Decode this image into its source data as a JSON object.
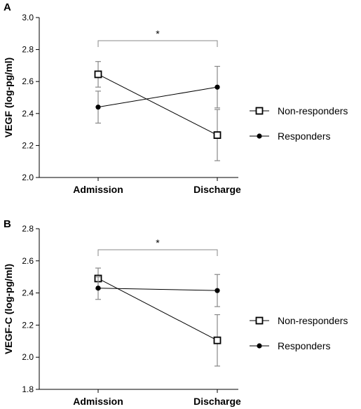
{
  "chart_data": [
    {
      "panel": "A",
      "type": "line",
      "ylabel": "VEGF (log-pg/ml)",
      "xlabel": "",
      "categories": [
        "Admission",
        "Discharge"
      ],
      "ylim": [
        2.0,
        3.0
      ],
      "yticks": [
        "2.0",
        "2.2",
        "2.4",
        "2.6",
        "2.8",
        "3.0"
      ],
      "series": [
        {
          "name": "Non-responders",
          "marker": "open-square",
          "values": [
            2.645,
            2.265
          ],
          "err_low": [
            2.565,
            2.105
          ],
          "err_high": [
            2.725,
            2.425
          ]
        },
        {
          "name": "Responders",
          "marker": "filled-circle",
          "values": [
            2.44,
            2.565
          ],
          "err_low": [
            2.34,
            2.435
          ],
          "err_high": [
            2.54,
            2.695
          ]
        }
      ],
      "significance": "*",
      "legend": "right"
    },
    {
      "panel": "B",
      "type": "line",
      "ylabel": "VEGF-C (log-pg/ml)",
      "xlabel": "",
      "categories": [
        "Admission",
        "Discharge"
      ],
      "ylim": [
        1.8,
        2.8
      ],
      "yticks": [
        "1.8",
        "2.0",
        "2.2",
        "2.4",
        "2.6",
        "2.8"
      ],
      "series": [
        {
          "name": "Non-responders",
          "marker": "open-square",
          "values": [
            2.49,
            2.105
          ],
          "err_low": [
            2.425,
            1.945
          ],
          "err_high": [
            2.555,
            2.265
          ]
        },
        {
          "name": "Responders",
          "marker": "filled-circle",
          "values": [
            2.43,
            2.415
          ],
          "err_low": [
            2.36,
            2.315
          ],
          "err_high": [
            2.5,
            2.515
          ]
        }
      ],
      "significance": "*",
      "legend": "right"
    }
  ]
}
